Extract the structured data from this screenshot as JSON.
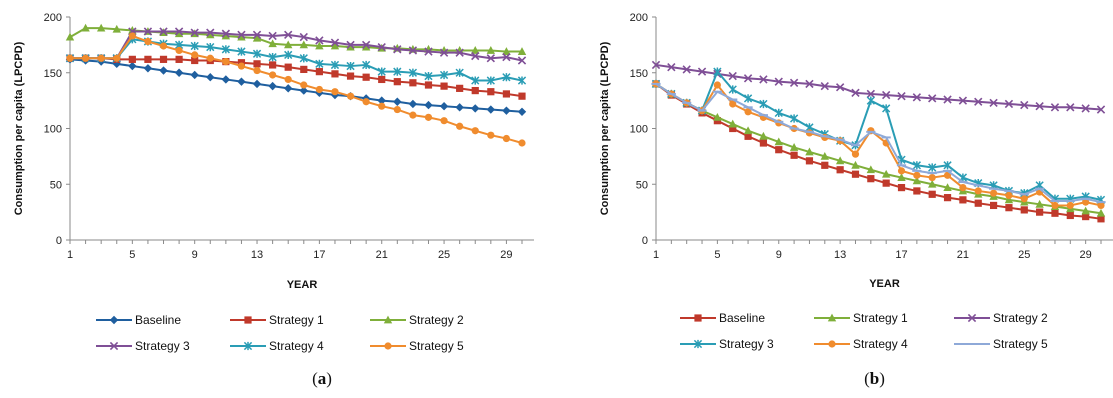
{
  "chart_data": [
    {
      "type": "line",
      "panel_label": "a",
      "xlabel": "YEAR",
      "ylabel": "Consumption per capita (LPCPD)",
      "xlim": [
        1,
        30
      ],
      "ylim": [
        0,
        200
      ],
      "xticks": [
        1,
        5,
        9,
        13,
        17,
        21,
        25,
        29
      ],
      "yticks": [
        0,
        50,
        100,
        150,
        200
      ],
      "legend_position": "bottom",
      "x": [
        1,
        2,
        3,
        4,
        5,
        6,
        7,
        8,
        9,
        10,
        11,
        12,
        13,
        14,
        15,
        16,
        17,
        18,
        19,
        20,
        21,
        22,
        23,
        24,
        25,
        26,
        27,
        28,
        29,
        30
      ],
      "series": [
        {
          "name": "Baseline",
          "color": "#1F5F9F",
          "marker": "diamond",
          "values": [
            162,
            161,
            160,
            158,
            156,
            154,
            152,
            150,
            148,
            146,
            144,
            142,
            140,
            138,
            136,
            134,
            132,
            130,
            129,
            127,
            125,
            124,
            122,
            121,
            120,
            119,
            118,
            117,
            116,
            115
          ]
        },
        {
          "name": "Strategy 1",
          "color": "#C0392B",
          "marker": "square",
          "values": [
            163,
            163,
            163,
            162,
            162,
            162,
            162,
            162,
            161,
            161,
            160,
            159,
            158,
            157,
            155,
            153,
            151,
            149,
            147,
            146,
            144,
            142,
            141,
            139,
            138,
            136,
            134,
            133,
            131,
            129
          ]
        },
        {
          "name": "Strategy 2",
          "color": "#7FAF3A",
          "marker": "triangle",
          "values": [
            182,
            190,
            190,
            189,
            188,
            187,
            186,
            185,
            185,
            184,
            183,
            182,
            181,
            176,
            175,
            175,
            174,
            174,
            173,
            173,
            172,
            172,
            171,
            171,
            170,
            170,
            170,
            170,
            169,
            169
          ]
        },
        {
          "name": "Strategy 3",
          "color": "#7F4F96",
          "marker": "x",
          "values": [
            163,
            163,
            163,
            163,
            187,
            187,
            187,
            187,
            186,
            186,
            185,
            184,
            184,
            183,
            184,
            182,
            179,
            177,
            175,
            175,
            173,
            171,
            170,
            169,
            168,
            168,
            165,
            163,
            164,
            161
          ]
        },
        {
          "name": "Strategy 4",
          "color": "#2A9DB5",
          "marker": "asterisk",
          "values": [
            163,
            163,
            163,
            163,
            180,
            178,
            176,
            175,
            174,
            173,
            171,
            169,
            167,
            164,
            166,
            163,
            158,
            157,
            156,
            157,
            151,
            151,
            150,
            147,
            148,
            150,
            143,
            143,
            146,
            143
          ]
        },
        {
          "name": "Strategy 5",
          "color": "#F08C2E",
          "marker": "circle",
          "values": [
            163,
            163,
            163,
            163,
            183,
            178,
            174,
            170,
            166,
            163,
            160,
            156,
            152,
            148,
            144,
            139,
            135,
            133,
            129,
            124,
            120,
            117,
            112,
            110,
            107,
            102,
            98,
            94,
            91,
            87
          ]
        }
      ]
    },
    {
      "type": "line",
      "panel_label": "b",
      "xlabel": "YEAR",
      "ylabel": "Consumption per capita (LPCPD)",
      "xlim": [
        1,
        30
      ],
      "ylim": [
        0,
        200
      ],
      "xticks": [
        1,
        5,
        9,
        13,
        17,
        21,
        25,
        29
      ],
      "yticks": [
        0,
        50,
        100,
        150,
        200
      ],
      "legend_position": "bottom",
      "x": [
        1,
        2,
        3,
        4,
        5,
        6,
        7,
        8,
        9,
        10,
        11,
        12,
        13,
        14,
        15,
        16,
        17,
        18,
        19,
        20,
        21,
        22,
        23,
        24,
        25,
        26,
        27,
        28,
        29,
        30
      ],
      "series": [
        {
          "name": "Baseline",
          "color": "#C0392B",
          "marker": "square",
          "values": [
            140,
            130,
            122,
            114,
            107,
            100,
            93,
            87,
            81,
            76,
            71,
            67,
            63,
            59,
            55,
            51,
            47,
            44,
            41,
            38,
            36,
            33,
            31,
            29,
            27,
            25,
            24,
            22,
            21,
            19
          ]
        },
        {
          "name": "Strategy 1",
          "color": "#7FAF3A",
          "marker": "triangle",
          "values": [
            140,
            131,
            123,
            116,
            110,
            104,
            98,
            93,
            88,
            83,
            79,
            75,
            71,
            67,
            63,
            59,
            56,
            53,
            50,
            47,
            44,
            41,
            39,
            36,
            34,
            32,
            30,
            28,
            26,
            24
          ]
        },
        {
          "name": "Strategy 2",
          "color": "#7F4F96",
          "marker": "x",
          "values": [
            157,
            155,
            153,
            151,
            149,
            147,
            145,
            144,
            142,
            141,
            140,
            138,
            137,
            132,
            131,
            130,
            129,
            128,
            127,
            126,
            125,
            124,
            123,
            122,
            121,
            120,
            119,
            119,
            118,
            117
          ]
        },
        {
          "name": "Strategy 3",
          "color": "#2A9DB5",
          "marker": "asterisk",
          "values": [
            140,
            131,
            123,
            116,
            151,
            135,
            127,
            122,
            114,
            109,
            101,
            95,
            89,
            85,
            125,
            118,
            72,
            67,
            65,
            67,
            56,
            51,
            49,
            44,
            42,
            49,
            37,
            37,
            39,
            36
          ]
        },
        {
          "name": "Strategy 4",
          "color": "#F08C2E",
          "marker": "circle",
          "values": [
            140,
            131,
            123,
            116,
            139,
            122,
            115,
            110,
            105,
            100,
            96,
            92,
            89,
            77,
            98,
            87,
            62,
            58,
            56,
            58,
            47,
            44,
            42,
            40,
            37,
            43,
            31,
            31,
            34,
            31
          ]
        },
        {
          "name": "Strategy 5",
          "color": "#8EA9D8",
          "marker": "dash",
          "values": [
            140,
            131,
            123,
            116,
            133,
            126,
            119,
            112,
            106,
            100,
            97,
            93,
            90,
            85,
            97,
            92,
            67,
            62,
            60,
            62,
            52,
            49,
            46,
            44,
            41,
            46,
            35,
            35,
            37,
            34
          ]
        }
      ]
    }
  ]
}
